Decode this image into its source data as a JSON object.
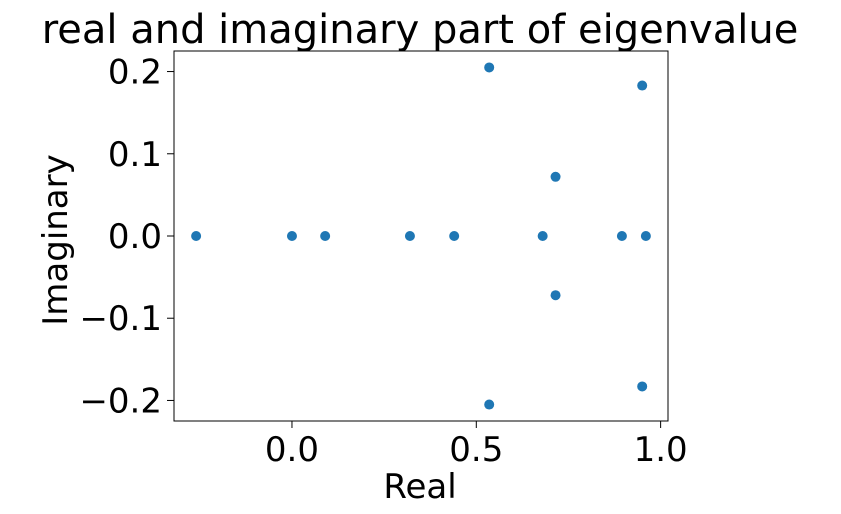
{
  "chart_data": {
    "type": "scatter",
    "title": "real and imaginary part of eigenvalue",
    "xlabel": "Real",
    "ylabel": "Imaginary",
    "xlim": [
      -0.32,
      1.02
    ],
    "ylim": [
      -0.225,
      0.225
    ],
    "xticks": [
      {
        "value": 0.0,
        "label": "0.0"
      },
      {
        "value": 0.5,
        "label": "0.5"
      },
      {
        "value": 1.0,
        "label": "1.0"
      }
    ],
    "yticks": [
      {
        "value": 0.2,
        "label": "0.2"
      },
      {
        "value": 0.1,
        "label": "0.1"
      },
      {
        "value": 0.0,
        "label": "0.0"
      },
      {
        "value": -0.1,
        "label": "−0.1"
      },
      {
        "value": -0.2,
        "label": "−0.2"
      }
    ],
    "grid": false,
    "marker_color": "#1f77b4",
    "points": [
      {
        "x": -0.26,
        "y": 0.0
      },
      {
        "x": 0.0,
        "y": 0.0
      },
      {
        "x": 0.09,
        "y": 0.0
      },
      {
        "x": 0.32,
        "y": 0.0
      },
      {
        "x": 0.44,
        "y": 0.0
      },
      {
        "x": 0.535,
        "y": 0.205
      },
      {
        "x": 0.535,
        "y": -0.205
      },
      {
        "x": 0.68,
        "y": 0.0
      },
      {
        "x": 0.715,
        "y": 0.072
      },
      {
        "x": 0.715,
        "y": -0.072
      },
      {
        "x": 0.895,
        "y": 0.0
      },
      {
        "x": 0.95,
        "y": 0.183
      },
      {
        "x": 0.95,
        "y": -0.183
      },
      {
        "x": 0.96,
        "y": 0.0
      }
    ]
  }
}
